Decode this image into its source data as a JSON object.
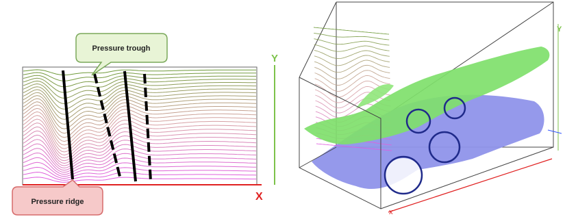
{
  "left_panel": {
    "trough_label": "Pressure trough",
    "ridge_label": "Pressure ridge",
    "axis_x_label": "X",
    "axis_y_label": "Y",
    "callout_fill": "#e8f4d6",
    "callout_stroke": "#7aa85a",
    "ridge_fill": "#f6c9c9",
    "ridge_stroke": "#d66a6a"
  },
  "right_panel": {
    "axis_x_label": "x",
    "axis_y_label": "Y",
    "green_surface_color": "#7fe06b",
    "blue_surface_color": "#8f93ea",
    "circle_color": "#1f2a8a"
  },
  "colors": {
    "axis_x": "#e02020",
    "axis_y": "#7cc24a",
    "line_top": "#6f9a3a",
    "line_mid": "#d7a3a3",
    "line_bottom": "#e05be0"
  }
}
